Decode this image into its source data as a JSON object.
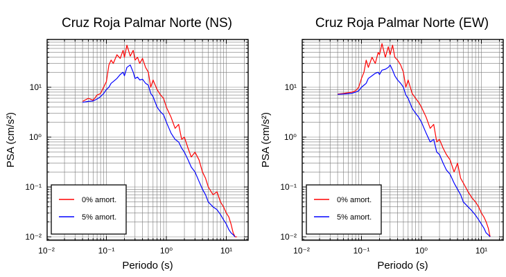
{
  "chart_data": [
    {
      "type": "line",
      "title": "Cruz Roja Palmar Norte (NS)",
      "xlabel": "Periodo (s)",
      "ylabel": "PSA (cm/s²)",
      "xscale": "log",
      "yscale": "log",
      "xlim": [
        0.01,
        20
      ],
      "ylim": [
        0.009,
        90
      ],
      "grid": true,
      "legend_position": "bottom-left",
      "x_tick_labels": [
        "10⁻²",
        "10⁻¹",
        "10⁰",
        "10¹"
      ],
      "y_tick_labels": [
        "10⁻²",
        "10⁻¹",
        "10⁰",
        "10¹"
      ],
      "series": [
        {
          "name": "0% amort.",
          "color": "#ff0000",
          "x": [
            0.04,
            0.05,
            0.06,
            0.07,
            0.08,
            0.09,
            0.1,
            0.11,
            0.12,
            0.13,
            0.15,
            0.17,
            0.19,
            0.2,
            0.22,
            0.25,
            0.28,
            0.3,
            0.33,
            0.36,
            0.4,
            0.45,
            0.5,
            0.55,
            0.6,
            0.7,
            0.8,
            0.9,
            1.0,
            1.2,
            1.4,
            1.6,
            1.8,
            2.0,
            2.3,
            2.6,
            3.0,
            3.5,
            4.0,
            4.5,
            5.0,
            6.0,
            7.0,
            8.0,
            9.0,
            10.0,
            11.0,
            12.0,
            13.0,
            14.0,
            15.0
          ],
          "values": [
            5.2,
            6.0,
            5.5,
            7.0,
            7.5,
            10.0,
            13.0,
            28.0,
            35.0,
            30.0,
            45.0,
            38.0,
            55.0,
            40.0,
            70.0,
            42.0,
            55.0,
            35.0,
            40.0,
            30.0,
            38.0,
            25.0,
            20.0,
            10.0,
            14.0,
            9.0,
            7.0,
            6.0,
            4.0,
            2.5,
            1.5,
            1.8,
            0.9,
            1.0,
            0.6,
            0.4,
            0.5,
            0.35,
            0.2,
            0.15,
            0.1,
            0.07,
            0.08,
            0.05,
            0.04,
            0.03,
            0.025,
            0.018,
            0.012,
            0.01,
            0.01
          ]
        },
        {
          "name": "5% amort.",
          "color": "#0000ff",
          "x": [
            0.04,
            0.05,
            0.06,
            0.07,
            0.08,
            0.09,
            0.1,
            0.11,
            0.12,
            0.13,
            0.15,
            0.17,
            0.19,
            0.2,
            0.22,
            0.25,
            0.28,
            0.3,
            0.33,
            0.36,
            0.4,
            0.45,
            0.5,
            0.55,
            0.6,
            0.7,
            0.8,
            0.9,
            1.0,
            1.2,
            1.4,
            1.6,
            1.8,
            2.0,
            2.3,
            2.6,
            3.0,
            3.5,
            4.0,
            4.5,
            5.0,
            6.0,
            7.0,
            8.0,
            9.0,
            10.0,
            11.0,
            12.0,
            13.0,
            14.0
          ],
          "values": [
            5.0,
            5.2,
            5.3,
            5.8,
            6.5,
            7.5,
            9.0,
            10.0,
            12.0,
            13.0,
            15.0,
            18.0,
            20.0,
            17.0,
            25.0,
            28.0,
            20.0,
            15.0,
            16.0,
            14.0,
            14.5,
            12.0,
            11.0,
            7.5,
            6.5,
            4.0,
            3.2,
            2.8,
            2.0,
            1.2,
            0.9,
            0.8,
            0.6,
            0.5,
            0.35,
            0.25,
            0.2,
            0.13,
            0.09,
            0.07,
            0.05,
            0.04,
            0.035,
            0.028,
            0.022,
            0.018,
            0.014,
            0.012,
            0.011,
            0.01
          ]
        }
      ]
    },
    {
      "type": "line",
      "title": "Cruz Roja Palmar Norte (EW)",
      "xlabel": "Periodo (s)",
      "ylabel": "PSA (cm/s²)",
      "xscale": "log",
      "yscale": "log",
      "xlim": [
        0.01,
        20
      ],
      "ylim": [
        0.009,
        90
      ],
      "grid": true,
      "legend_position": "bottom-left",
      "x_tick_labels": [
        "10⁻²",
        "10⁻¹",
        "10⁰",
        "10¹"
      ],
      "y_tick_labels": [
        "10⁻²",
        "10⁻¹",
        "10⁰",
        "10¹"
      ],
      "series": [
        {
          "name": "0% amort.",
          "color": "#ff0000",
          "x": [
            0.04,
            0.05,
            0.06,
            0.07,
            0.08,
            0.09,
            0.1,
            0.11,
            0.12,
            0.13,
            0.15,
            0.17,
            0.19,
            0.2,
            0.22,
            0.25,
            0.28,
            0.3,
            0.33,
            0.36,
            0.4,
            0.45,
            0.5,
            0.55,
            0.6,
            0.7,
            0.8,
            0.9,
            1.0,
            1.2,
            1.4,
            1.6,
            1.8,
            2.0,
            2.3,
            2.6,
            3.0,
            3.5,
            4.0,
            4.5,
            5.0,
            6.0,
            7.0,
            8.0,
            9.0,
            10.0,
            11.0,
            12.0,
            13.0,
            14.0
          ],
          "values": [
            7.3,
            7.5,
            7.8,
            8.0,
            8.5,
            10.0,
            15.0,
            20.0,
            35.0,
            25.0,
            40.0,
            30.0,
            50.0,
            45.0,
            75.0,
            40.0,
            65.0,
            45.0,
            70.0,
            40.0,
            35.0,
            28.0,
            20.0,
            10.0,
            14.0,
            7.5,
            6.0,
            5.0,
            4.0,
            2.5,
            1.5,
            1.8,
            0.8,
            0.9,
            0.6,
            0.45,
            0.35,
            0.2,
            0.3,
            0.15,
            0.12,
            0.08,
            0.06,
            0.05,
            0.04,
            0.03,
            0.025,
            0.02,
            0.015,
            0.01
          ]
        },
        {
          "name": "5% amort.",
          "color": "#0000ff",
          "x": [
            0.04,
            0.05,
            0.06,
            0.07,
            0.08,
            0.09,
            0.1,
            0.11,
            0.12,
            0.13,
            0.15,
            0.17,
            0.19,
            0.2,
            0.22,
            0.25,
            0.28,
            0.3,
            0.33,
            0.36,
            0.4,
            0.45,
            0.5,
            0.55,
            0.6,
            0.7,
            0.8,
            0.9,
            1.0,
            1.2,
            1.4,
            1.6,
            1.8,
            2.0,
            2.3,
            2.6,
            3.0,
            3.5,
            4.0,
            4.5,
            5.0,
            6.0,
            7.0,
            8.0,
            9.0,
            10.0,
            11.0,
            12.0,
            13.0,
            14.0
          ],
          "values": [
            7.2,
            7.3,
            7.4,
            7.6,
            8.0,
            8.5,
            10.0,
            11.0,
            12.0,
            15.0,
            17.0,
            19.0,
            20.0,
            18.0,
            22.0,
            23.0,
            25.0,
            28.0,
            22.0,
            17.0,
            14.0,
            12.0,
            10.0,
            7.0,
            6.0,
            3.8,
            3.0,
            2.5,
            2.0,
            1.2,
            0.8,
            0.9,
            0.5,
            0.45,
            0.3,
            0.22,
            0.18,
            0.12,
            0.09,
            0.07,
            0.05,
            0.04,
            0.033,
            0.027,
            0.022,
            0.018,
            0.015,
            0.012,
            0.011,
            0.01
          ]
        }
      ]
    }
  ]
}
